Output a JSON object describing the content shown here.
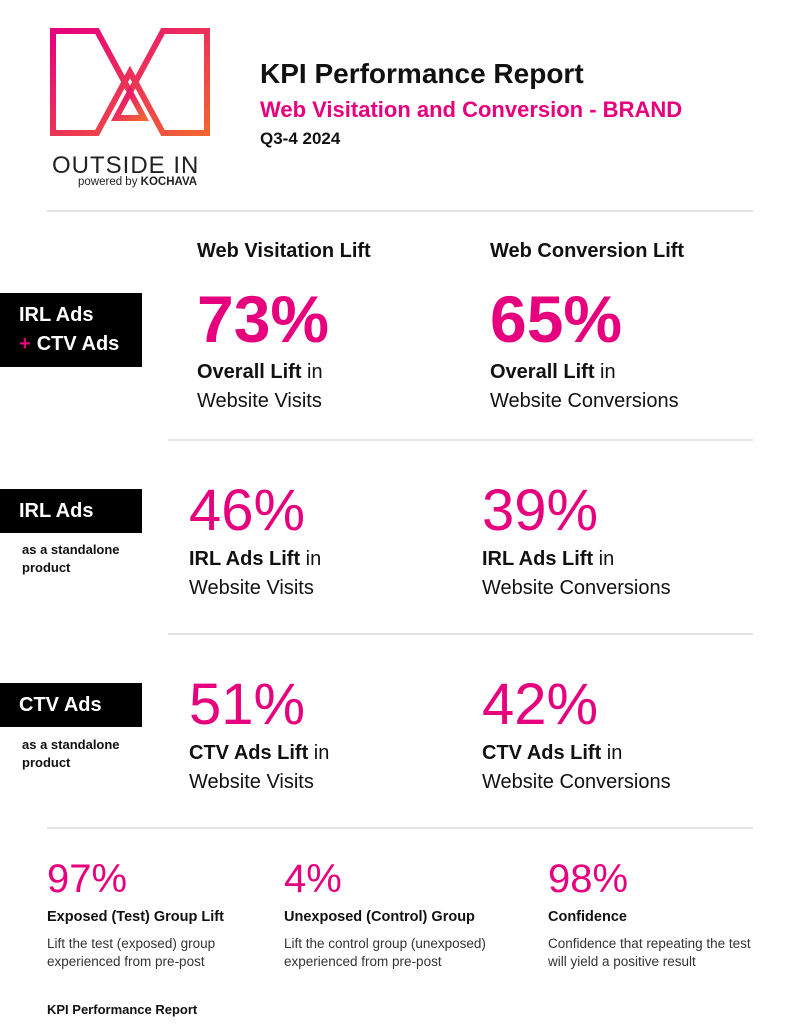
{
  "colors": {
    "brand": "#e6007e",
    "gradient_start": "#e6007e",
    "gradient_end": "#f26531",
    "label_bg": "#000000"
  },
  "logo": {
    "icon": "outside-in-logo-icon",
    "wordmark": "OUTSIDE IN",
    "powered_prefix": "powered by",
    "powered_brand": "KOCHAVA"
  },
  "header": {
    "title": "KPI Performance Report",
    "subtitle": "Web Visitation and Conversion - BRAND",
    "period": "Q3-4 2024"
  },
  "columns": {
    "visitation": "Web Visitation Lift",
    "conversion": "Web Conversion Lift"
  },
  "rows": [
    {
      "label_line1": "IRL Ads",
      "label_plus": "+",
      "label_line2": "CTV Ads",
      "visit": {
        "value": "73%",
        "bold": "Overall Lift",
        "rest": " in",
        "line2": "Website Visits"
      },
      "conv": {
        "value": "65%",
        "bold": "Overall Lift",
        "rest": " in",
        "line2": "Website Conversions"
      }
    },
    {
      "label": "IRL Ads",
      "note": "as a standalone product",
      "visit": {
        "value": "46%",
        "bold": "IRL Ads Lift",
        "rest": " in",
        "line2": "Website Visits"
      },
      "conv": {
        "value": "39%",
        "bold": "IRL Ads Lift",
        "rest": " in",
        "line2": "Website Conversions"
      }
    },
    {
      "label": "CTV Ads",
      "note": "as a standalone product",
      "visit": {
        "value": "51%",
        "bold": "CTV Ads Lift",
        "rest": " in",
        "line2": "Website Visits"
      },
      "conv": {
        "value": "42%",
        "bold": "CTV Ads Lift",
        "rest": " in",
        "line2": "Website Conversions"
      }
    }
  ],
  "kpis": [
    {
      "value": "97%",
      "title": "Exposed (Test) Group Lift",
      "desc": "Lift the test (exposed) group experienced from pre-post"
    },
    {
      "value": "4%",
      "title": "Unexposed (Control) Group",
      "desc": "Lift the control group (unexposed) experienced from pre-post"
    },
    {
      "value": "98%",
      "title": "Confidence",
      "desc": "Confidence that repeating the test will yield a positive result"
    }
  ],
  "footer": "KPI Performance Report"
}
